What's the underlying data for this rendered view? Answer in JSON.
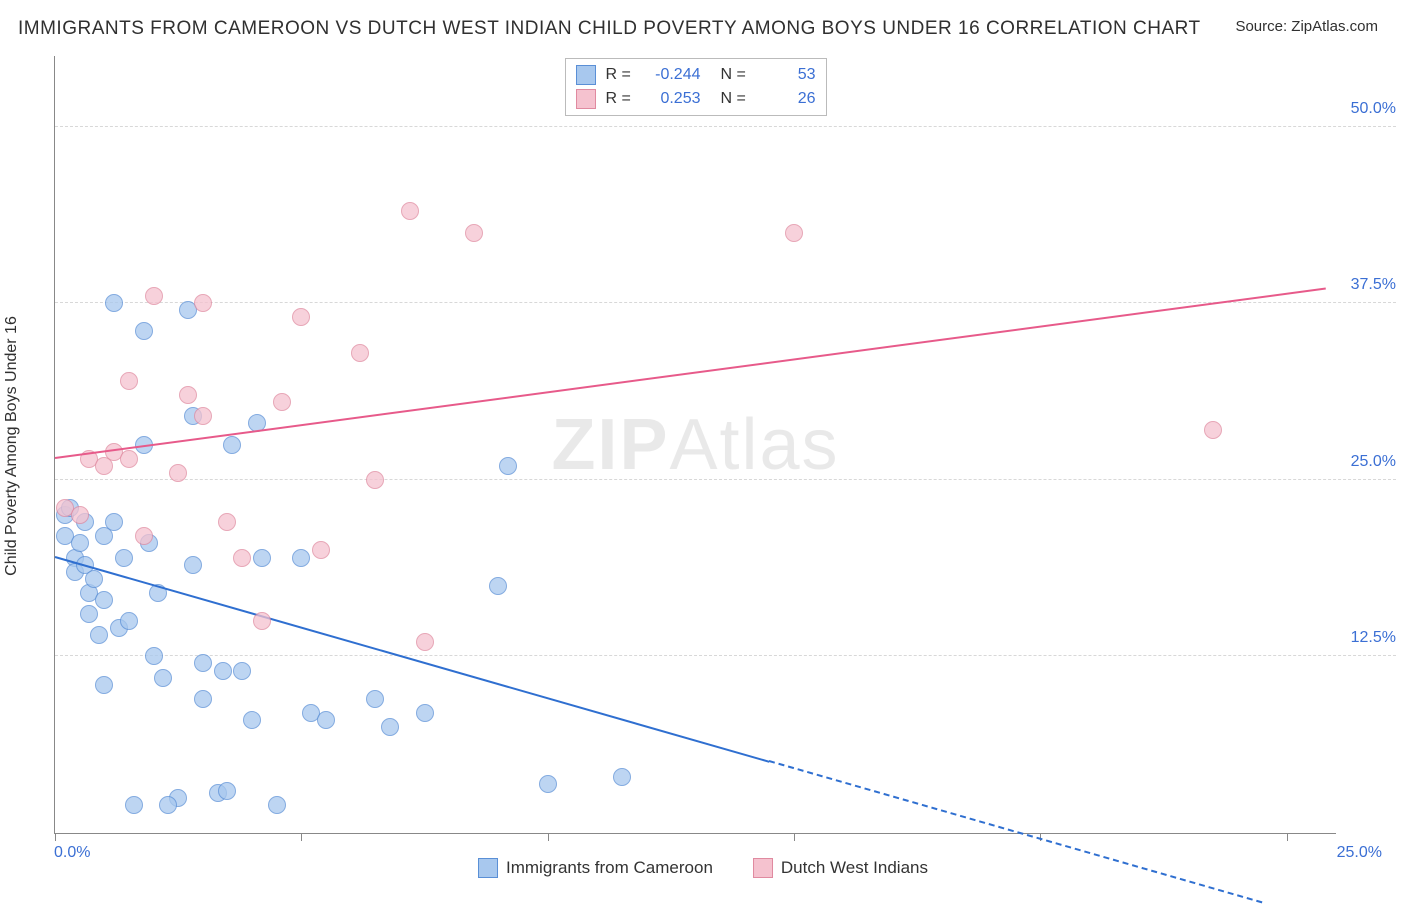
{
  "title": "IMMIGRANTS FROM CAMEROON VS DUTCH WEST INDIAN CHILD POVERTY AMONG BOYS UNDER 16 CORRELATION CHART",
  "source": "Source: ZipAtlas.com",
  "watermark_a": "ZIP",
  "watermark_b": "Atlas",
  "y_axis_title": "Child Poverty Among Boys Under 16",
  "chart": {
    "x_min": 0.0,
    "x_max": 26.0,
    "y_min": 0.0,
    "y_max": 55.0,
    "y_ticks": [
      12.5,
      25.0,
      37.5,
      50.0
    ],
    "y_tick_labels": [
      "12.5%",
      "25.0%",
      "37.5%",
      "50.0%"
    ],
    "x_ticks": [
      0.0,
      5.0,
      10.0,
      15.0,
      20.0,
      25.0
    ],
    "x_origin_label": "0.0%",
    "x_end_label": "25.0%",
    "series": [
      {
        "name": "Immigrants from Cameroon",
        "color_fill": "#a8c8ee",
        "color_stroke": "#5a8fd6",
        "opacity": 0.75,
        "radius": 9,
        "R": "-0.244",
        "N": "53",
        "trend": {
          "x1": 0,
          "y1": 19.5,
          "x2": 14.5,
          "y2": 5.0,
          "solid_color": "#2f6fd0",
          "dash_x1": 14.5,
          "dash_y1": 5.0,
          "dash_x2": 24.5,
          "dash_y2": -5.0
        },
        "points": [
          [
            0.2,
            22.5
          ],
          [
            0.2,
            21.0
          ],
          [
            0.3,
            23.0
          ],
          [
            0.4,
            19.5
          ],
          [
            0.4,
            18.5
          ],
          [
            0.5,
            20.5
          ],
          [
            0.6,
            22.0
          ],
          [
            0.6,
            19.0
          ],
          [
            0.7,
            17.0
          ],
          [
            0.7,
            15.5
          ],
          [
            0.8,
            18.0
          ],
          [
            0.9,
            14.0
          ],
          [
            1.0,
            16.5
          ],
          [
            1.0,
            21.0
          ],
          [
            1.0,
            10.5
          ],
          [
            1.2,
            37.5
          ],
          [
            1.2,
            22.0
          ],
          [
            1.3,
            14.5
          ],
          [
            1.4,
            19.5
          ],
          [
            1.5,
            15.0
          ],
          [
            1.6,
            2.0
          ],
          [
            1.8,
            35.5
          ],
          [
            1.8,
            27.5
          ],
          [
            1.9,
            20.5
          ],
          [
            2.0,
            12.5
          ],
          [
            2.1,
            17.0
          ],
          [
            2.2,
            11.0
          ],
          [
            2.5,
            2.5
          ],
          [
            2.7,
            37.0
          ],
          [
            2.8,
            29.5
          ],
          [
            2.8,
            19.0
          ],
          [
            2.3,
            2.0
          ],
          [
            3.0,
            9.5
          ],
          [
            3.0,
            12.0
          ],
          [
            3.3,
            2.8
          ],
          [
            3.4,
            11.5
          ],
          [
            3.5,
            3.0
          ],
          [
            3.6,
            27.5
          ],
          [
            3.8,
            11.5
          ],
          [
            4.0,
            8.0
          ],
          [
            4.1,
            29.0
          ],
          [
            4.2,
            19.5
          ],
          [
            4.5,
            2.0
          ],
          [
            5.0,
            19.5
          ],
          [
            5.2,
            8.5
          ],
          [
            5.5,
            8.0
          ],
          [
            6.5,
            9.5
          ],
          [
            6.8,
            7.5
          ],
          [
            7.5,
            8.5
          ],
          [
            9.0,
            17.5
          ],
          [
            9.2,
            26.0
          ],
          [
            10.0,
            3.5
          ],
          [
            11.5,
            4.0
          ]
        ]
      },
      {
        "name": "Dutch West Indians",
        "color_fill": "#f5c2cf",
        "color_stroke": "#e08aa0",
        "opacity": 0.75,
        "radius": 9,
        "R": "0.253",
        "N": "26",
        "trend": {
          "x1": 0,
          "y1": 26.5,
          "x2": 25.8,
          "y2": 38.5,
          "solid_color": "#e75a8a"
        },
        "points": [
          [
            0.2,
            23.0
          ],
          [
            0.5,
            22.5
          ],
          [
            0.7,
            26.5
          ],
          [
            1.0,
            26.0
          ],
          [
            1.2,
            27.0
          ],
          [
            1.5,
            26.5
          ],
          [
            1.5,
            32.0
          ],
          [
            1.8,
            21.0
          ],
          [
            2.0,
            38.0
          ],
          [
            2.5,
            25.5
          ],
          [
            2.7,
            31.0
          ],
          [
            3.0,
            37.5
          ],
          [
            3.0,
            29.5
          ],
          [
            3.5,
            22.0
          ],
          [
            3.8,
            19.5
          ],
          [
            4.2,
            15.0
          ],
          [
            4.6,
            30.5
          ],
          [
            5.0,
            36.5
          ],
          [
            5.4,
            20.0
          ],
          [
            6.2,
            34.0
          ],
          [
            6.5,
            25.0
          ],
          [
            7.2,
            44.0
          ],
          [
            7.5,
            13.5
          ],
          [
            8.5,
            42.5
          ],
          [
            15.0,
            42.5
          ],
          [
            23.5,
            28.5
          ]
        ]
      }
    ]
  },
  "legend_bottom": [
    {
      "label": "Immigrants from Cameroon",
      "fill": "#a8c8ee",
      "stroke": "#5a8fd6"
    },
    {
      "label": "Dutch West Indians",
      "fill": "#f5c2cf",
      "stroke": "#e08aa0"
    }
  ],
  "legend_top_labels": {
    "R": "R =",
    "N": "N ="
  }
}
